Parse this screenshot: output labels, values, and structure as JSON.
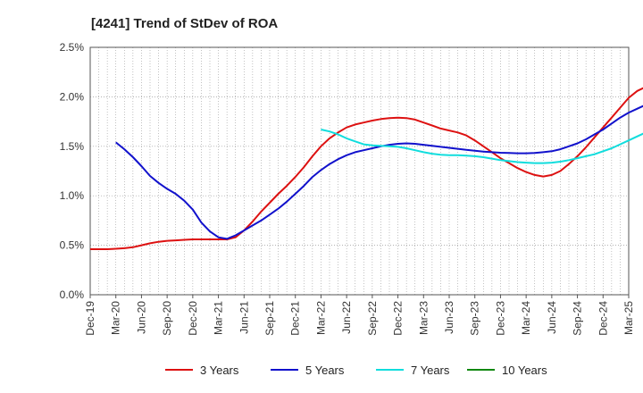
{
  "chart_data": {
    "type": "line",
    "title": "[4241]  Trend of StDev of ROA",
    "xlabel": "",
    "ylabel": "",
    "ylim": [
      0,
      2.5
    ],
    "yticks": [
      "0.0%",
      "0.5%",
      "1.0%",
      "1.5%",
      "2.0%",
      "2.5%"
    ],
    "x_ticks": [
      "Dec-19",
      "Mar-20",
      "Jun-20",
      "Sep-20",
      "Dec-20",
      "Mar-21",
      "Jun-21",
      "Sep-21",
      "Dec-21",
      "Mar-22",
      "Jun-22",
      "Sep-22",
      "Dec-22",
      "Mar-23",
      "Jun-23",
      "Sep-23",
      "Dec-23",
      "Mar-24",
      "Jun-24",
      "Sep-24",
      "Dec-24",
      "Mar-25"
    ],
    "x_unit": "month index from Dec-19",
    "grid": true,
    "legend": "bottom",
    "series": [
      {
        "name": "3 Years",
        "color": "#dd1111",
        "points": [
          [
            0,
            0.46
          ],
          [
            1,
            0.46
          ],
          [
            2,
            0.46
          ],
          [
            3,
            0.465
          ],
          [
            4,
            0.47
          ],
          [
            5,
            0.48
          ],
          [
            6,
            0.5
          ],
          [
            7,
            0.52
          ],
          [
            8,
            0.535
          ],
          [
            9,
            0.545
          ],
          [
            10,
            0.55
          ],
          [
            11,
            0.555
          ],
          [
            12,
            0.56
          ],
          [
            13,
            0.56
          ],
          [
            14,
            0.56
          ],
          [
            15,
            0.56
          ],
          [
            16,
            0.56
          ],
          [
            17,
            0.58
          ],
          [
            18,
            0.65
          ],
          [
            19,
            0.74
          ],
          [
            20,
            0.84
          ],
          [
            21,
            0.93
          ],
          [
            22,
            1.02
          ],
          [
            23,
            1.1
          ],
          [
            24,
            1.19
          ],
          [
            25,
            1.29
          ],
          [
            26,
            1.4
          ],
          [
            27,
            1.5
          ],
          [
            28,
            1.58
          ],
          [
            29,
            1.64
          ],
          [
            30,
            1.69
          ],
          [
            31,
            1.72
          ],
          [
            32,
            1.74
          ],
          [
            33,
            1.76
          ],
          [
            34,
            1.775
          ],
          [
            35,
            1.785
          ],
          [
            36,
            1.79
          ],
          [
            37,
            1.785
          ],
          [
            38,
            1.77
          ],
          [
            39,
            1.74
          ],
          [
            40,
            1.71
          ],
          [
            41,
            1.68
          ],
          [
            42,
            1.66
          ],
          [
            43,
            1.64
          ],
          [
            44,
            1.61
          ],
          [
            45,
            1.56
          ],
          [
            46,
            1.5
          ],
          [
            47,
            1.44
          ],
          [
            48,
            1.38
          ],
          [
            49,
            1.33
          ],
          [
            50,
            1.28
          ],
          [
            51,
            1.24
          ],
          [
            52,
            1.21
          ],
          [
            53,
            1.195
          ],
          [
            54,
            1.21
          ],
          [
            55,
            1.25
          ],
          [
            56,
            1.32
          ],
          [
            57,
            1.4
          ],
          [
            58,
            1.49
          ],
          [
            59,
            1.59
          ],
          [
            60,
            1.69
          ],
          [
            61,
            1.79
          ],
          [
            62,
            1.89
          ],
          [
            63,
            1.99
          ],
          [
            64,
            2.06
          ],
          [
            65,
            2.1
          ],
          [
            66,
            2.09
          ]
        ]
      },
      {
        "name": "5 Years",
        "color": "#1111cc",
        "points": [
          [
            3,
            1.54
          ],
          [
            4,
            1.47
          ],
          [
            5,
            1.39
          ],
          [
            6,
            1.3
          ],
          [
            7,
            1.2
          ],
          [
            8,
            1.13
          ],
          [
            9,
            1.07
          ],
          [
            10,
            1.02
          ],
          [
            11,
            0.95
          ],
          [
            12,
            0.86
          ],
          [
            13,
            0.73
          ],
          [
            14,
            0.64
          ],
          [
            15,
            0.58
          ],
          [
            16,
            0.565
          ],
          [
            17,
            0.6
          ],
          [
            18,
            0.65
          ],
          [
            19,
            0.7
          ],
          [
            20,
            0.75
          ],
          [
            21,
            0.81
          ],
          [
            22,
            0.87
          ],
          [
            23,
            0.94
          ],
          [
            24,
            1.02
          ],
          [
            25,
            1.1
          ],
          [
            26,
            1.19
          ],
          [
            27,
            1.26
          ],
          [
            28,
            1.32
          ],
          [
            29,
            1.37
          ],
          [
            30,
            1.41
          ],
          [
            31,
            1.44
          ],
          [
            32,
            1.46
          ],
          [
            33,
            1.48
          ],
          [
            34,
            1.5
          ],
          [
            35,
            1.515
          ],
          [
            36,
            1.525
          ],
          [
            37,
            1.53
          ],
          [
            38,
            1.525
          ],
          [
            39,
            1.515
          ],
          [
            40,
            1.505
          ],
          [
            41,
            1.495
          ],
          [
            42,
            1.485
          ],
          [
            43,
            1.475
          ],
          [
            44,
            1.465
          ],
          [
            45,
            1.455
          ],
          [
            46,
            1.447
          ],
          [
            47,
            1.44
          ],
          [
            48,
            1.435
          ],
          [
            49,
            1.432
          ],
          [
            50,
            1.43
          ],
          [
            51,
            1.43
          ],
          [
            52,
            1.432
          ],
          [
            53,
            1.44
          ],
          [
            54,
            1.45
          ],
          [
            55,
            1.47
          ],
          [
            56,
            1.5
          ],
          [
            57,
            1.53
          ],
          [
            58,
            1.57
          ],
          [
            59,
            1.62
          ],
          [
            60,
            1.67
          ],
          [
            61,
            1.73
          ],
          [
            62,
            1.79
          ],
          [
            63,
            1.84
          ],
          [
            64,
            1.88
          ],
          [
            65,
            1.92
          ],
          [
            66,
            1.95
          ]
        ]
      },
      {
        "name": "7 Years",
        "color": "#11dddd",
        "points": [
          [
            27,
            1.67
          ],
          [
            28,
            1.65
          ],
          [
            29,
            1.62
          ],
          [
            30,
            1.58
          ],
          [
            31,
            1.55
          ],
          [
            32,
            1.52
          ],
          [
            33,
            1.51
          ],
          [
            34,
            1.505
          ],
          [
            35,
            1.5
          ],
          [
            36,
            1.495
          ],
          [
            37,
            1.48
          ],
          [
            38,
            1.46
          ],
          [
            39,
            1.44
          ],
          [
            40,
            1.425
          ],
          [
            41,
            1.415
          ],
          [
            42,
            1.41
          ],
          [
            43,
            1.41
          ],
          [
            44,
            1.405
          ],
          [
            45,
            1.4
          ],
          [
            46,
            1.39
          ],
          [
            47,
            1.375
          ],
          [
            48,
            1.36
          ],
          [
            49,
            1.35
          ],
          [
            50,
            1.34
          ],
          [
            51,
            1.335
          ],
          [
            52,
            1.33
          ],
          [
            53,
            1.33
          ],
          [
            54,
            1.335
          ],
          [
            55,
            1.345
          ],
          [
            56,
            1.36
          ],
          [
            57,
            1.38
          ],
          [
            58,
            1.4
          ],
          [
            59,
            1.42
          ],
          [
            60,
            1.45
          ],
          [
            61,
            1.48
          ],
          [
            62,
            1.52
          ],
          [
            63,
            1.56
          ],
          [
            64,
            1.6
          ],
          [
            65,
            1.64
          ],
          [
            66,
            1.67
          ],
          [
            67,
            1.7
          ]
        ]
      },
      {
        "name": "10 Years",
        "color": "#118811",
        "points": []
      }
    ]
  }
}
